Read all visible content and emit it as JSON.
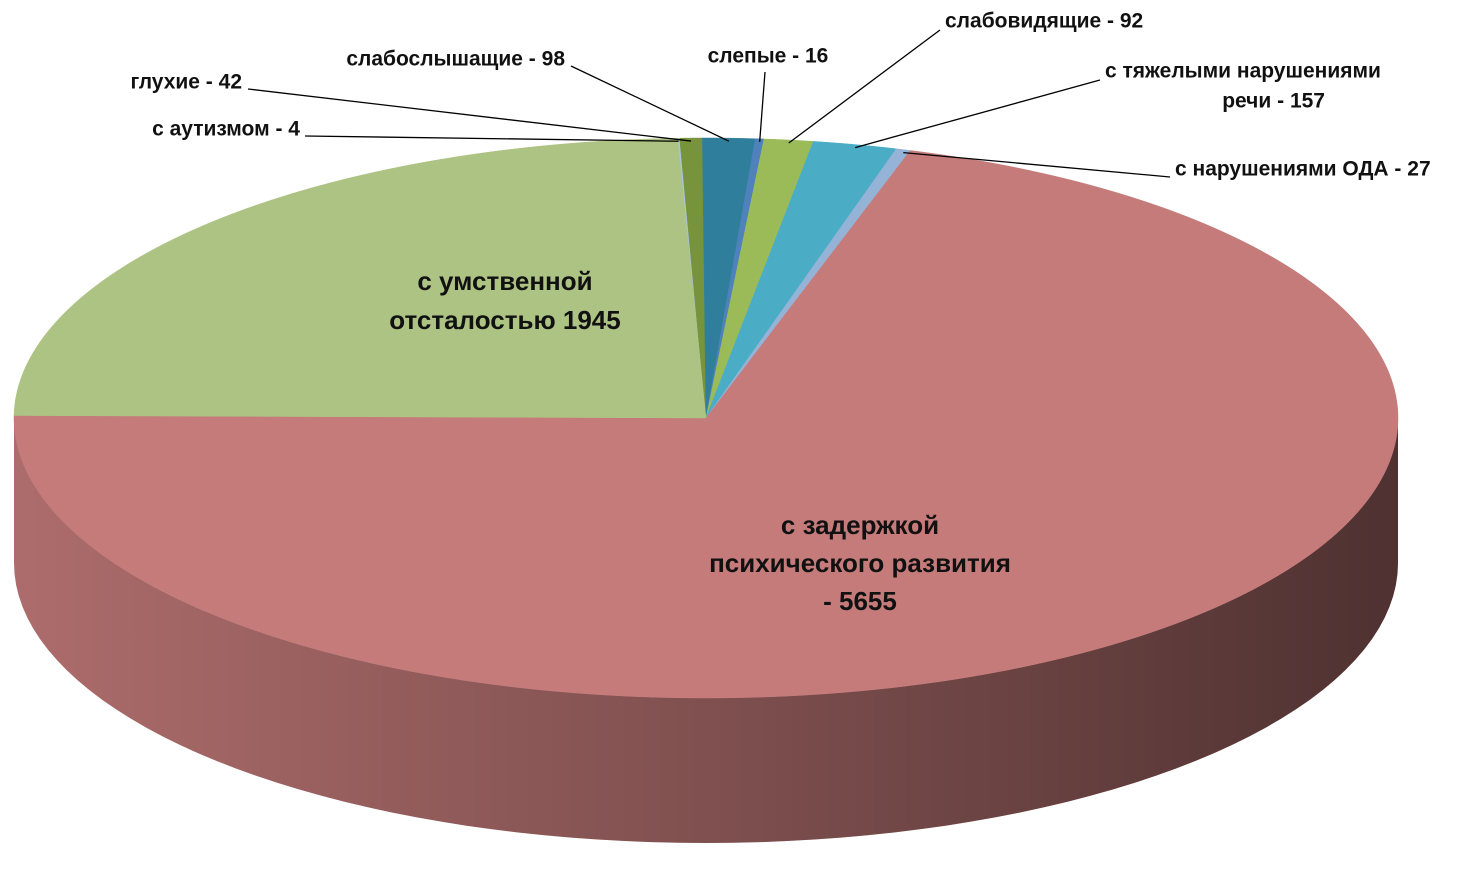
{
  "chart_data": {
    "type": "pie",
    "categories": [
      [
        "с аутизмом - 4"
      ],
      [
        "глухие  -  42"
      ],
      [
        "слабослышащие - 98"
      ],
      [
        "слепые - 16"
      ],
      [
        "слабовидящие - 92"
      ],
      [
        "с тяжелыми  нарушениями",
        "речи - 157"
      ],
      [
        "с нарушениями ОДА - 27"
      ],
      [
        "с задержкой",
        "психического развития",
        "- 5655"
      ],
      [
        "с умственной",
        "отсталостью 1945"
      ]
    ],
    "values": [
      4,
      42,
      98,
      16,
      92,
      157,
      27,
      5655,
      1945
    ],
    "colors": [
      "#a9c4dc",
      "#77933c",
      "#2f7f9c",
      "#4f81bd",
      "#9bbb59",
      "#4bacc6",
      "#95b3d7",
      "#c47b7a",
      "#adc383"
    ]
  }
}
